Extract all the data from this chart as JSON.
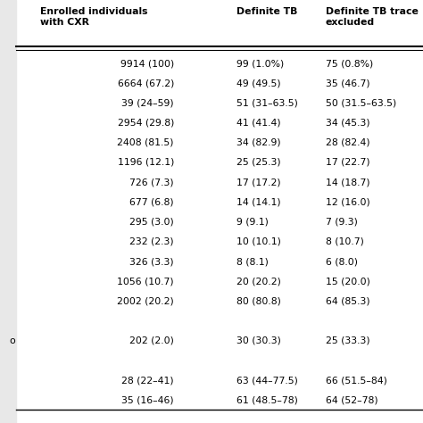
{
  "col_headers": [
    "Enrolled individuals\nwith CXR",
    "Definite TB",
    "Definite TB trace\nexcluded"
  ],
  "rows": [
    [
      "9914 (100)",
      "99 (1.0%)",
      "75 (0.8%)"
    ],
    [
      "6664 (67.2)",
      "49 (49.5)",
      "35 (46.7)"
    ],
    [
      "39 (24–59)",
      "51 (31–63.5)",
      "50 (31.5–63.5)"
    ],
    [
      "2954 (29.8)",
      "41 (41.4)",
      "34 (45.3)"
    ],
    [
      "2408 (81.5)",
      "34 (82.9)",
      "28 (82.4)"
    ],
    [
      "1196 (12.1)",
      "25 (25.3)",
      "17 (22.7)"
    ],
    [
      "726 (7.3)",
      "17 (17.2)",
      "14 (18.7)"
    ],
    [
      "677 (6.8)",
      "14 (14.1)",
      "12 (16.0)"
    ],
    [
      "295 (3.0)",
      "9 (9.1)",
      "7 (9.3)"
    ],
    [
      "232 (2.3)",
      "10 (10.1)",
      "8 (10.7)"
    ],
    [
      "326 (3.3)",
      "8 (8.1)",
      "6 (8.0)"
    ],
    [
      "1056 (10.7)",
      "20 (20.2)",
      "15 (20.0)"
    ],
    [
      "2002 (20.2)",
      "80 (80.8)",
      "64 (85.3)"
    ],
    [
      "",
      "",
      ""
    ],
    [
      "202 (2.0)",
      "30 (30.3)",
      "25 (33.3)"
    ],
    [
      "",
      "",
      ""
    ],
    [
      "28 (22–41)",
      "63 (44–77.5)",
      "66 (51.5–84)"
    ],
    [
      "35 (16–46)",
      "61 (48.5–78)",
      "64 (52–78)"
    ]
  ],
  "row_left_labels": [
    "",
    "",
    "",
    "",
    "",
    "",
    "",
    "",
    "",
    "",
    "",
    "",
    "",
    "",
    "o",
    "",
    "",
    ""
  ],
  "col0_indent": [
    false,
    false,
    true,
    false,
    false,
    false,
    true,
    true,
    true,
    true,
    true,
    false,
    false,
    false,
    true,
    false,
    true,
    true
  ],
  "background_color": "#ffffff",
  "text_color": "#000000",
  "font_size": 7.8,
  "header_font_size": 7.8,
  "left_bg_color": "#e8e8e8"
}
